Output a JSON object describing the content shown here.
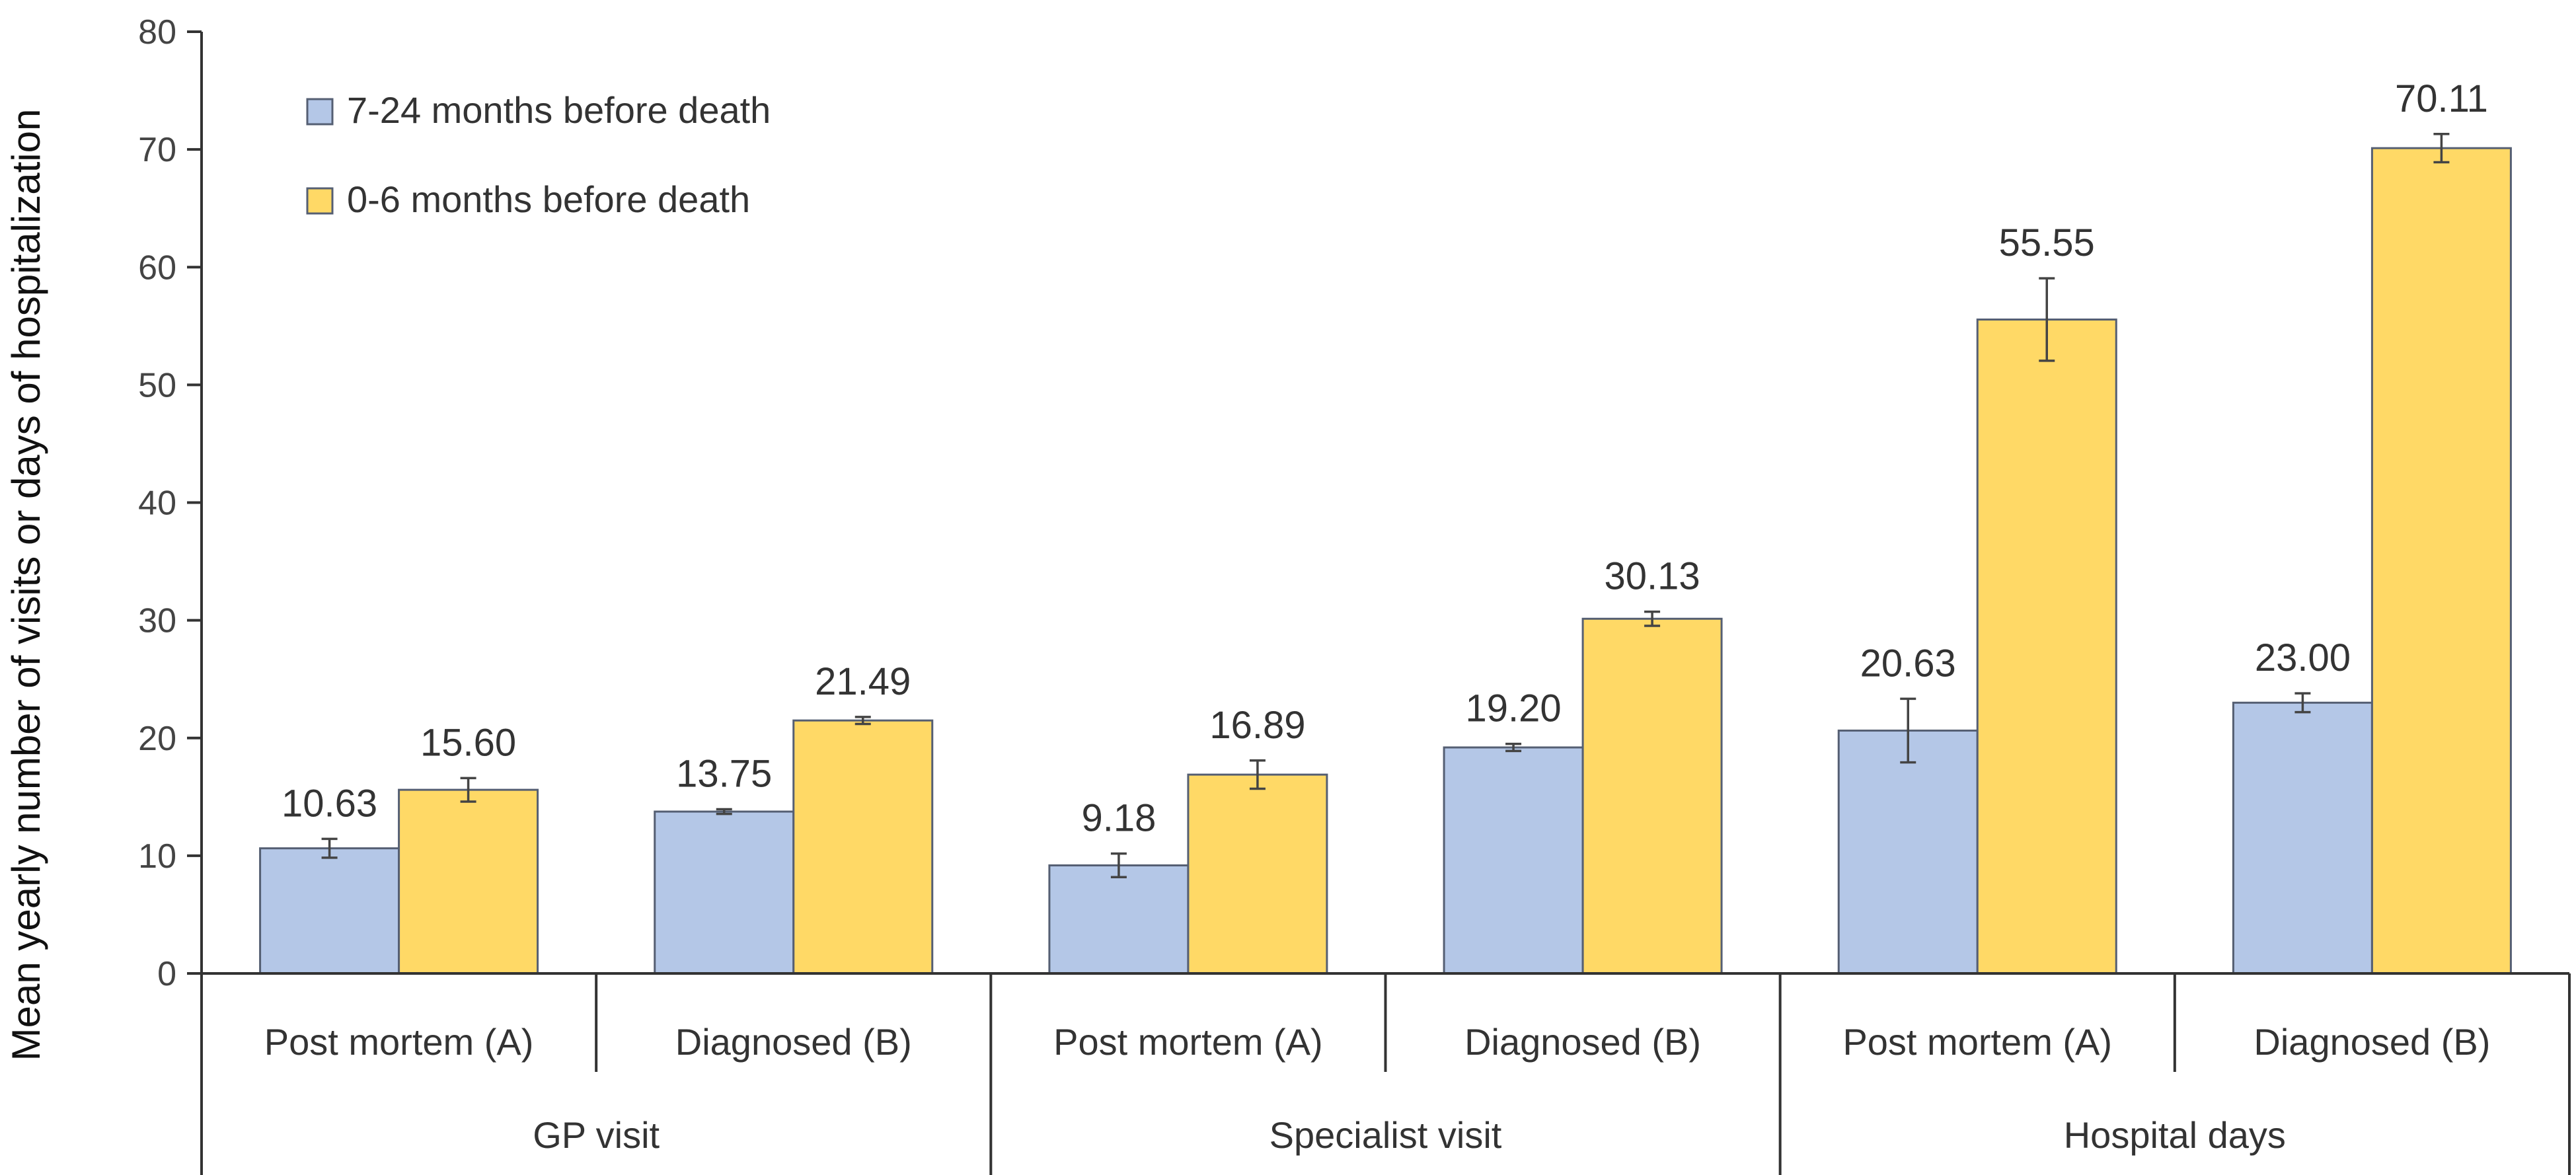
{
  "chart_data": {
    "type": "bar",
    "title": "",
    "xlabel": "",
    "ylabel": "Mean yearly number of visits or days of hospitalization",
    "ylim": [
      0,
      80
    ],
    "yticks": [
      0,
      10,
      20,
      30,
      40,
      50,
      60,
      70,
      80
    ],
    "ytick_labels": [
      "0",
      "10",
      "20",
      "30",
      "40",
      "50",
      "60",
      "70",
      "80"
    ],
    "grid": false,
    "legend_position": "top-left",
    "groups": [
      {
        "label": "GP visit",
        "categories": [
          "Post mortem (A)",
          "Diagnosed (B)"
        ]
      },
      {
        "label": "Specialist visit",
        "categories": [
          "Post mortem (A)",
          "Diagnosed (B)"
        ]
      },
      {
        "label": "Hospital days",
        "categories": [
          "Post mortem (A)",
          "Diagnosed (B)"
        ]
      }
    ],
    "series": [
      {
        "name": "7-24 months before death",
        "color": "#b4c7e7",
        "values": [
          10.63,
          13.75,
          9.18,
          19.2,
          20.63,
          23.0
        ],
        "value_labels": [
          "10.63",
          "13.75",
          "9.18",
          "19.20",
          "20.63",
          "23.00"
        ],
        "error": [
          0.8,
          0.2,
          1.0,
          0.3,
          2.7,
          0.8
        ]
      },
      {
        "name": "0-6 months before death",
        "color": "#ffd966",
        "values": [
          15.6,
          21.49,
          16.89,
          30.13,
          55.55,
          70.11
        ],
        "value_labels": [
          "15.60",
          "21.49",
          "16.89",
          "30.13",
          "55.55",
          "70.11"
        ],
        "error": [
          1.0,
          0.3,
          1.2,
          0.6,
          3.5,
          1.2
        ]
      }
    ]
  }
}
